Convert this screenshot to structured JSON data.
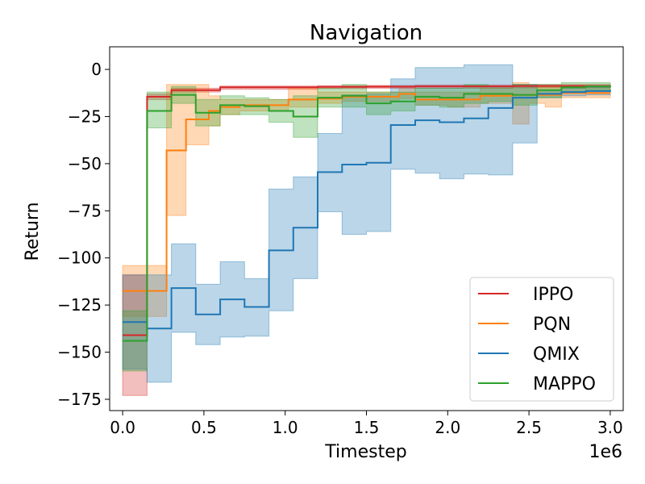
{
  "chart_data": {
    "type": "line",
    "title": "Navigation",
    "xlabel": "Timestep",
    "ylabel": "Return",
    "x_scale_label": "1e6",
    "xlim": [
      -0.08,
      3.08
    ],
    "ylim": [
      -181,
      12
    ],
    "x_ticks": [
      0.0,
      0.5,
      1.0,
      1.5,
      2.0,
      2.5,
      3.0
    ],
    "x_tick_labels": [
      "0.0",
      "0.5",
      "1.0",
      "1.5",
      "2.0",
      "2.5",
      "3.0"
    ],
    "y_ticks": [
      0,
      -25,
      -50,
      -75,
      -100,
      -125,
      -150,
      -175
    ],
    "y_tick_labels": [
      "0",
      "−25",
      "−50",
      "−75",
      "−100",
      "−125",
      "−150",
      "−175"
    ],
    "legend_position": "lower-right",
    "series": [
      {
        "name": "IPPO",
        "color": "#d62728",
        "x": [
          0.0,
          0.15,
          0.3,
          0.6,
          0.9,
          1.2,
          1.5,
          1.8,
          2.1,
          2.4,
          2.7,
          3.0
        ],
        "y": [
          -141,
          -14.5,
          -11,
          -9.5,
          -9.5,
          -9.3,
          -9.2,
          -9,
          -9,
          -8.8,
          -8.8,
          -8.7
        ],
        "lower": [
          -173,
          -16,
          -12,
          -10.5,
          -10.5,
          -10.2,
          -10,
          -10,
          -10,
          -9.8,
          -9.6,
          -9.5
        ],
        "upper": [
          -109,
          -13,
          -10,
          -8.8,
          -8.8,
          -8.6,
          -8.5,
          -8.2,
          -8.2,
          -8,
          -8,
          -8
        ]
      },
      {
        "name": "PQN",
        "color": "#ff7f0e",
        "x": [
          0.0,
          0.15,
          0.24,
          0.27,
          0.34,
          0.39,
          0.47,
          0.53,
          0.6,
          0.72,
          0.91,
          1.02,
          1.2,
          1.35,
          1.5,
          1.7,
          1.8,
          2.0,
          2.2,
          2.4,
          2.5,
          2.6,
          2.7,
          3.0
        ],
        "y": [
          -117.5,
          -117.5,
          -117.5,
          -43,
          -43,
          -26.5,
          -26.5,
          -22,
          -20,
          -19,
          -19,
          -16,
          -15.5,
          -14.5,
          -14.5,
          -13,
          -16,
          -16,
          -14,
          -13.5,
          -13.5,
          -13.5,
          -12.5,
          -12.5
        ],
        "lower": [
          -131,
          -131,
          -131,
          -77.5,
          -77.5,
          -40,
          -40,
          -30,
          -24,
          -22,
          -22,
          -20,
          -18,
          -17,
          -17,
          -15.5,
          -19,
          -20,
          -18,
          -29,
          -18,
          -20,
          -15,
          -15
        ],
        "upper": [
          -104,
          -104,
          -104,
          -8,
          -8,
          -8,
          -8,
          -14,
          -16,
          -16,
          -16,
          -10,
          -12,
          -12,
          -12,
          -10,
          -12,
          -12,
          -10,
          -7,
          -9,
          -9,
          -10,
          -9.5
        ]
      },
      {
        "name": "QMIX",
        "color": "#1f77b4",
        "x": [
          0.0,
          0.15,
          0.3,
          0.45,
          0.6,
          0.75,
          0.9,
          1.05,
          1.2,
          1.35,
          1.5,
          1.65,
          1.8,
          1.95,
          2.1,
          2.25,
          2.4,
          2.55,
          2.7,
          2.85,
          3.0
        ],
        "y": [
          -134,
          -137.5,
          -116,
          -130,
          -122,
          -126,
          -96,
          -84,
          -54.5,
          -50.5,
          -49.5,
          -29.5,
          -27,
          -28,
          -26,
          -20.5,
          -15,
          -13,
          -12,
          -11.5,
          -11
        ],
        "lower": [
          -159,
          -166,
          -139.5,
          -146,
          -142,
          -141.5,
          -128,
          -111,
          -75.5,
          -87.5,
          -86,
          -53,
          -55,
          -58,
          -55.5,
          -56,
          -39,
          -15,
          -14,
          -13.5,
          -13
        ],
        "upper": [
          -109,
          -109,
          -92.5,
          -114,
          -102,
          -111,
          -63.5,
          -57,
          -34,
          -13.5,
          -13,
          -5,
          1,
          1,
          2.5,
          2.5,
          -8,
          -11,
          -10,
          -9.5,
          -9
        ]
      },
      {
        "name": "MAPPO",
        "color": "#2ca02c",
        "x": [
          0.0,
          0.15,
          0.3,
          0.45,
          0.6,
          0.75,
          0.9,
          1.05,
          1.2,
          1.35,
          1.5,
          1.65,
          1.8,
          1.95,
          2.1,
          2.25,
          2.4,
          2.55,
          2.7,
          2.85,
          3.0
        ],
        "y": [
          -144,
          -22,
          -13.5,
          -23,
          -19,
          -19.5,
          -22,
          -25,
          -15,
          -14,
          -18,
          -17,
          -14.5,
          -15,
          -13,
          -13,
          -13.5,
          -11,
          -9.5,
          -9,
          -8.5
        ],
        "lower": [
          -160,
          -31,
          -18,
          -30,
          -24,
          -24,
          -28,
          -36,
          -20,
          -20,
          -24,
          -22,
          -19,
          -20,
          -18,
          -17,
          -19,
          -15,
          -12,
          -11,
          -10
        ],
        "upper": [
          -128,
          -12,
          -9,
          -16,
          -14,
          -15,
          -16,
          -14,
          -10,
          -8,
          -12,
          -12,
          -10,
          -10,
          -8,
          -9,
          -8,
          -8,
          -7,
          -7,
          -7
        ]
      }
    ]
  }
}
